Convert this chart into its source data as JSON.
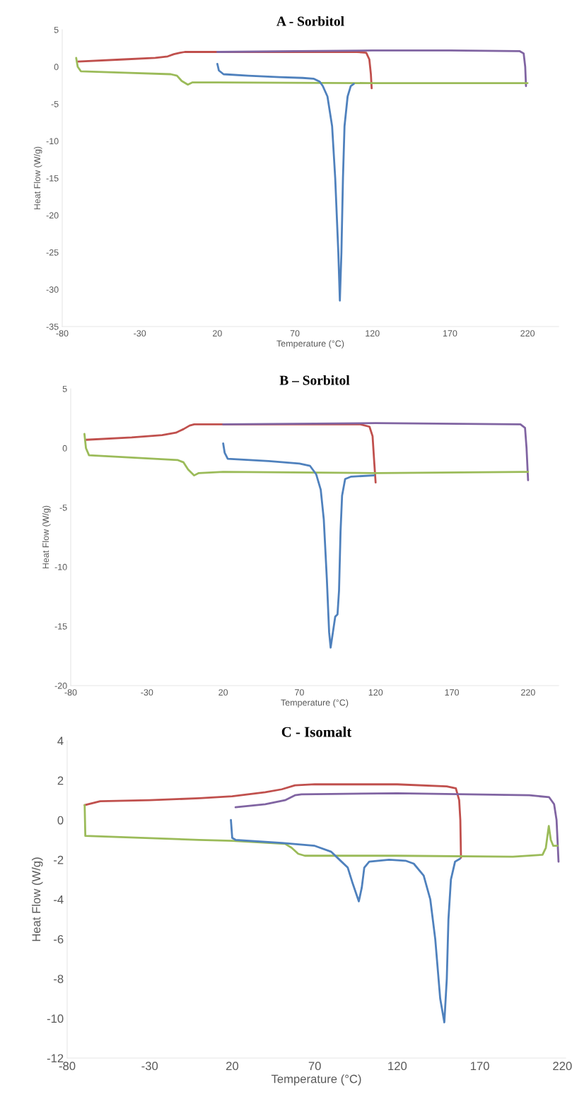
{
  "chart_data": [
    {
      "type": "line",
      "title": "A - Sorbitol",
      "xlabel": "Temperature (°C)",
      "ylabel": "Heat Flow (W/g)",
      "xlim": [
        -80,
        240
      ],
      "xticks": [
        -80,
        -30,
        20,
        70,
        120,
        170,
        220
      ],
      "ylim": [
        -35,
        5
      ],
      "yticks": [
        -35,
        -30,
        -25,
        -20,
        -15,
        -10,
        -5,
        0,
        5
      ],
      "line_style": "solid",
      "series": [
        {
          "color": "#c0504d",
          "x": [
            -70,
            -40,
            -20,
            -12,
            -8,
            -4,
            -1,
            20,
            70,
            110,
            116,
            118,
            119,
            119.5
          ],
          "values": [
            0.7,
            1.0,
            1.2,
            1.4,
            1.7,
            1.9,
            2.0,
            2.0,
            2.0,
            2.0,
            1.9,
            1.0,
            -1,
            -2.9
          ]
        },
        {
          "color": "#8064a2",
          "x": [
            20,
            70,
            120,
            170,
            215,
            217.5,
            218.5,
            219
          ],
          "values": [
            2.0,
            2.1,
            2.2,
            2.2,
            2.1,
            1.8,
            0,
            -2.6
          ]
        },
        {
          "color": "#9bbb59",
          "x": [
            -71,
            -70,
            -68,
            -40,
            -10,
            -6,
            -3,
            1,
            4,
            20,
            120,
            220
          ],
          "values": [
            1.2,
            0,
            -0.6,
            -0.8,
            -1.0,
            -1.2,
            -1.9,
            -2.4,
            -2.1,
            -2.1,
            -2.2,
            -2.2
          ]
        },
        {
          "color": "#4f81bd",
          "x": [
            20,
            21,
            24,
            40,
            60,
            75,
            82,
            86,
            88,
            91,
            94,
            96,
            98,
            99,
            100,
            101,
            102,
            104,
            106,
            108
          ],
          "values": [
            0.4,
            -0.5,
            -1.0,
            -1.2,
            -1.4,
            -1.5,
            -1.6,
            -2.0,
            -2.6,
            -4,
            -8,
            -15,
            -25,
            -31.5,
            -25,
            -15,
            -8,
            -4,
            -2.6,
            -2.3
          ]
        }
      ]
    },
    {
      "type": "line",
      "title": "B – Sorbitol",
      "xlabel": "Temperature (°C)",
      "ylabel": "Heat Flow (W/g)",
      "xlim": [
        -80,
        240
      ],
      "xticks": [
        -80,
        -30,
        20,
        70,
        120,
        170,
        220
      ],
      "ylim": [
        -20,
        5
      ],
      "yticks": [
        -20,
        -15,
        -10,
        -5,
        0,
        5
      ],
      "line_style": "solid",
      "series": [
        {
          "color": "#c0504d",
          "x": [
            -70,
            -40,
            -20,
            -11,
            -6,
            -2,
            1,
            20,
            70,
            110,
            116,
            118,
            119,
            120
          ],
          "values": [
            0.7,
            0.9,
            1.1,
            1.3,
            1.6,
            1.9,
            2.0,
            2.0,
            2.0,
            2.0,
            1.8,
            1.0,
            -1,
            -2.9
          ]
        },
        {
          "color": "#8064a2",
          "x": [
            20,
            120,
            215,
            218,
            219,
            220
          ],
          "values": [
            2.0,
            2.1,
            2.0,
            1.7,
            0,
            -2.7
          ]
        },
        {
          "color": "#9bbb59",
          "x": [
            -71,
            -70,
            -68,
            -40,
            -10,
            -6,
            -3,
            1,
            4,
            20,
            120,
            220
          ],
          "values": [
            1.2,
            0,
            -0.6,
            -0.8,
            -1.0,
            -1.2,
            -1.8,
            -2.3,
            -2.1,
            -2.0,
            -2.1,
            -2.0
          ]
        },
        {
          "color": "#4f81bd",
          "x": [
            20,
            21,
            23,
            50,
            70,
            77,
            81,
            84,
            86,
            88,
            89.5,
            90.5,
            92,
            93.5,
            95,
            96,
            97,
            98,
            100,
            104,
            119
          ],
          "values": [
            0.4,
            -0.4,
            -0.9,
            -1.1,
            -1.3,
            -1.5,
            -2.2,
            -3.5,
            -6,
            -11,
            -15.5,
            -16.8,
            -15.5,
            -14.2,
            -14,
            -12,
            -7,
            -4,
            -2.6,
            -2.4,
            -2.3
          ]
        }
      ]
    },
    {
      "type": "line",
      "title": "C - Isomalt",
      "xlabel": "Temperature (°C)",
      "ylabel": "Heat Flow (W/g)",
      "xlim": [
        -80,
        222
      ],
      "xticks": [
        -80,
        -30,
        20,
        70,
        120,
        170,
        220
      ],
      "ylim": [
        -12,
        4
      ],
      "yticks": [
        -12,
        -10,
        -8,
        -6,
        -4,
        -2,
        0,
        2,
        4
      ],
      "line_style": "solid",
      "series": [
        {
          "color": "#c0504d",
          "x": [
            -69.4,
            -60,
            -30,
            0,
            20,
            40,
            50,
            58,
            70,
            120,
            150,
            155.5,
            157.5,
            158.2,
            158.6
          ],
          "values": [
            0.75,
            0.95,
            1.0,
            1.1,
            1.2,
            1.4,
            1.55,
            1.75,
            1.8,
            1.8,
            1.7,
            1.6,
            1.0,
            0,
            -1.9
          ]
        },
        {
          "color": "#8064a2",
          "x": [
            22,
            40,
            52,
            58,
            62,
            120,
            200,
            212,
            215,
            216.5,
            217.7
          ],
          "values": [
            0.65,
            0.8,
            1.0,
            1.25,
            1.3,
            1.35,
            1.25,
            1.15,
            0.8,
            0,
            -2.1
          ]
        },
        {
          "color": "#9bbb59",
          "x": [
            -69.4,
            -69,
            0,
            20,
            52,
            56,
            60,
            64,
            120,
            190,
            208,
            210,
            211.8,
            213,
            214.5,
            217
          ],
          "values": [
            0.75,
            -0.8,
            -1.0,
            -1.05,
            -1.2,
            -1.4,
            -1.7,
            -1.8,
            -1.8,
            -1.85,
            -1.75,
            -1.4,
            -0.3,
            -1.0,
            -1.3,
            -1.3
          ]
        },
        {
          "color": "#4f81bd",
          "x": [
            19.2,
            20,
            22,
            50,
            70,
            80,
            85,
            90,
            93,
            96.7,
            98.5,
            100,
            103,
            115,
            125,
            130,
            136,
            140,
            143,
            146,
            148.5,
            150,
            151,
            152.5,
            155,
            158
          ],
          "values": [
            0,
            -0.9,
            -1.0,
            -1.15,
            -1.3,
            -1.6,
            -2.0,
            -2.4,
            -3.2,
            -4.1,
            -3.4,
            -2.4,
            -2.1,
            -2.0,
            -2.05,
            -2.2,
            -2.8,
            -4,
            -6,
            -9,
            -10.2,
            -8,
            -5,
            -3,
            -2.1,
            -1.95
          ]
        }
      ]
    }
  ]
}
